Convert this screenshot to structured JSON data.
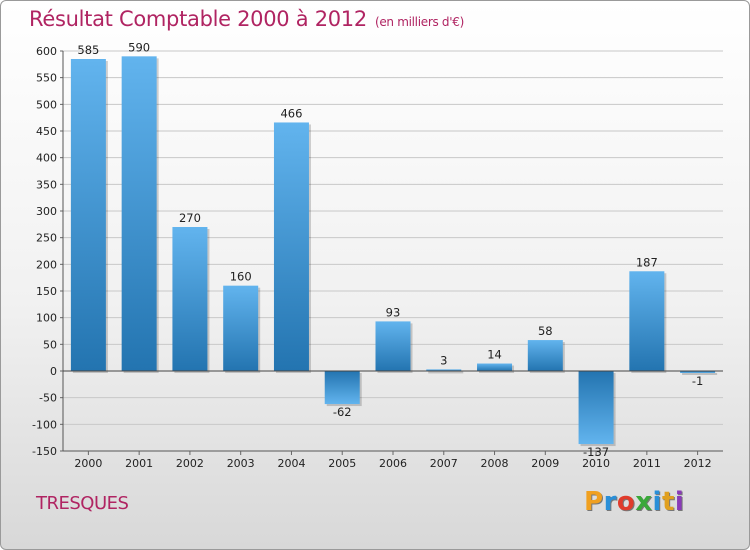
{
  "title": "Résultat Comptable 2000 à 2012",
  "unit": "(en milliers d'€)",
  "commune": "TRESQUES",
  "logo": {
    "text": "Proxiti",
    "letters": [
      {
        "ch": "P",
        "color": "#f0a020"
      },
      {
        "ch": "r",
        "color": "#2a8fd8"
      },
      {
        "ch": "o",
        "color": "#e03c2c"
      },
      {
        "ch": "x",
        "color": "#3aa83a"
      },
      {
        "ch": "i",
        "color": "#2a8fd8"
      },
      {
        "ch": "t",
        "color": "#e0a020"
      },
      {
        "ch": "i",
        "color": "#8a3ab8"
      }
    ]
  },
  "colors": {
    "title": "#b02462",
    "bar_light": "#5fb0ea",
    "bar_dark": "#2277b3",
    "grid": "#c8c8c8"
  },
  "chart_data": {
    "type": "bar",
    "title": "Résultat Comptable 2000 à 2012",
    "subtitle": "(en milliers d'€)",
    "xlabel": "",
    "ylabel": "",
    "categories": [
      "2000",
      "2001",
      "2002",
      "2003",
      "2004",
      "2005",
      "2006",
      "2007",
      "2008",
      "2009",
      "2010",
      "2011",
      "2012"
    ],
    "values": [
      585,
      590,
      270,
      160,
      466,
      -62,
      93,
      3,
      14,
      58,
      -137,
      187,
      -1
    ],
    "labels": [
      "585",
      "590",
      "270",
      "160",
      "466",
      "-62",
      "93",
      "3",
      "14",
      "58",
      "-137",
      "187",
      "-1"
    ],
    "ylim": [
      -150,
      600
    ],
    "yticks": [
      -150,
      -100,
      -50,
      0,
      50,
      100,
      150,
      200,
      250,
      300,
      350,
      400,
      450,
      500,
      550,
      600
    ],
    "grid": true
  }
}
